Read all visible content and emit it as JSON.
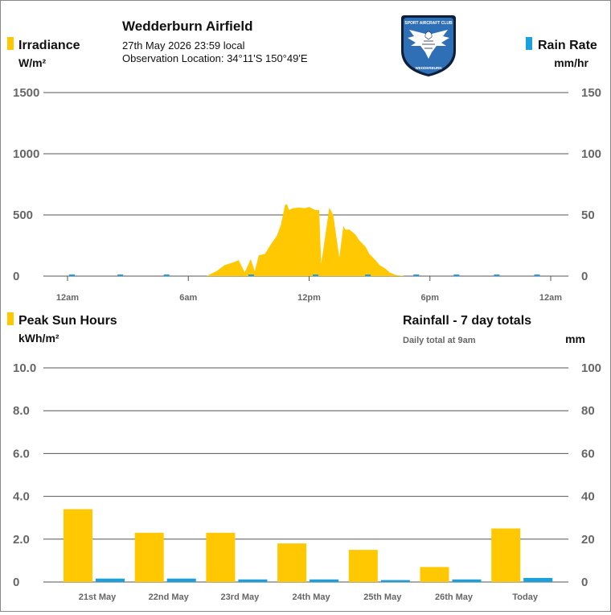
{
  "header": {
    "title": "Wedderburn Airfield",
    "datetime": "27th May 2026  23:59 local",
    "location": "Observation Location: 34°11'S 150°49'E",
    "logo_text_top": "SPORT AIRCRAFT CLUB",
    "logo_text_bottom": "WEDDERBURN"
  },
  "colors": {
    "irradiance": "#ffc800",
    "rain": "#1aa0dc",
    "grid": "#555555",
    "logo_bg": "#2f6fb6"
  },
  "chart_data": [
    {
      "type": "area",
      "left_legend": "Irradiance",
      "left_unit": "W/m²",
      "right_legend": "Rain Rate",
      "right_unit": "mm/hr",
      "y_ticks": [
        "1500",
        "1000",
        "500",
        "0"
      ],
      "y_right_ticks": [
        "150",
        "100",
        "50",
        "0"
      ],
      "ylim": [
        0,
        1500
      ],
      "y_right_lim": [
        0,
        150
      ],
      "x_ticks": [
        "12am",
        "6am",
        "12pm",
        "6pm",
        "12am"
      ],
      "x_range_hours": [
        0,
        24
      ],
      "irradiance_hours": [
        6.9,
        7.4,
        7.8,
        8.2,
        8.5,
        8.8,
        9.1,
        9.3,
        9.5,
        9.8,
        10.1,
        10.4,
        10.6,
        10.8,
        10.9,
        11.0,
        11.2,
        11.5,
        11.8,
        12.0,
        12.3,
        12.5,
        12.6,
        12.9,
        13.0,
        13.2,
        13.5,
        13.7,
        13.8,
        14.0,
        14.3,
        14.5,
        14.8,
        15.0,
        15.3,
        15.5,
        15.8,
        16.0,
        16.3,
        16.5,
        16.8,
        17.0
      ],
      "irradiance_values": [
        0,
        40,
        90,
        110,
        130,
        30,
        140,
        40,
        170,
        180,
        260,
        330,
        420,
        580,
        590,
        540,
        555,
        560,
        555,
        565,
        540,
        540,
        100,
        440,
        560,
        500,
        150,
        410,
        380,
        380,
        340,
        290,
        240,
        180,
        130,
        90,
        60,
        30,
        10,
        5,
        0,
        0
      ],
      "rain_rate_hours": [
        0.2,
        2.6,
        4.9,
        9.1,
        12.3,
        14.9,
        17.3,
        19.3,
        21.3,
        23.3
      ],
      "rain_rate_values": [
        0,
        0,
        0,
        0,
        0,
        0,
        0,
        0,
        0,
        0
      ]
    },
    {
      "type": "bar",
      "left_legend": "Peak Sun Hours",
      "left_unit": "kWh/m²",
      "right_legend": "Rainfall - 7 day totals",
      "right_note": "Daily total at 9am",
      "right_unit": "mm",
      "y_ticks": [
        "10.0",
        "8.0",
        "6.0",
        "4.0",
        "2.0",
        "0"
      ],
      "y_right_ticks": [
        "100",
        "80",
        "60",
        "40",
        "20",
        "0"
      ],
      "ylim": [
        0,
        10
      ],
      "y_right_lim": [
        0,
        100
      ],
      "categories": [
        "21st May",
        "22nd May",
        "23rd May",
        "24th May",
        "25th May",
        "26th May",
        "Today"
      ],
      "series": [
        {
          "name": "Peak Sun Hours",
          "values": [
            3.4,
            2.3,
            2.3,
            1.8,
            1.5,
            0.7,
            2.5
          ]
        },
        {
          "name": "Rainfall - 7 day totals",
          "values": [
            1.6,
            1.6,
            1.2,
            1.2,
            0.9,
            1.2,
            1.9
          ]
        }
      ]
    }
  ]
}
